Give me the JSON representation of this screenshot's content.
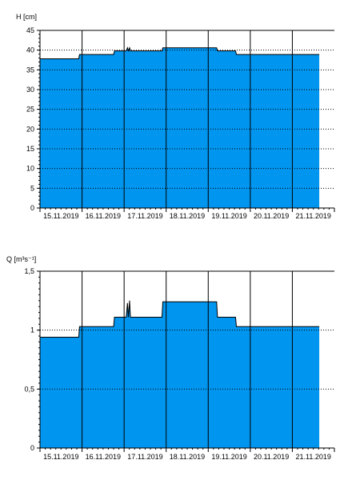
{
  "chart_data": [
    {
      "type": "area",
      "ylabel": "H [cm]",
      "ylim": [
        0,
        45
      ],
      "yticks": [
        "0",
        "5",
        "10",
        "15",
        "20",
        "25",
        "30",
        "35",
        "40",
        "45"
      ],
      "xticks": [
        "15.11.2019",
        "16.11.2019",
        "17.11.2019",
        "18.11.2019",
        "19.11.2019",
        "20.11.2019",
        "21.11.2019"
      ],
      "xlim": [
        0,
        7
      ],
      "grid": "dotted",
      "series": [
        {
          "color": "#0095ee",
          "x": [
            0.0,
            0.92,
            0.94,
            1.75,
            1.77,
            2.05,
            2.08,
            2.1,
            2.13,
            2.15,
            2.9,
            2.92,
            4.2,
            4.22,
            4.65,
            4.67,
            6.64
          ],
          "y": [
            37.8,
            37.8,
            38.9,
            38.9,
            39.8,
            39.8,
            40.6,
            39.8,
            40.6,
            39.8,
            39.8,
            40.6,
            40.6,
            39.8,
            39.8,
            38.9,
            38.9
          ]
        }
      ]
    },
    {
      "type": "area",
      "ylabel": "Q [m³s⁻¹]",
      "ylim": [
        0,
        1.5
      ],
      "yticks": [
        "0",
        "0,5",
        "1",
        "1,5"
      ],
      "xticks": [
        "15.11.2019",
        "16.11.2019",
        "17.11.2019",
        "18.11.2019",
        "19.11.2019",
        "20.11.2019",
        "21.11.2019"
      ],
      "xlim": [
        0,
        7
      ],
      "grid": "dotted",
      "series": [
        {
          "color": "#0095ee",
          "x": [
            0.0,
            0.92,
            0.94,
            1.75,
            1.77,
            2.05,
            2.08,
            2.1,
            2.13,
            2.15,
            2.9,
            2.92,
            4.2,
            4.22,
            4.65,
            4.67,
            6.64
          ],
          "y": [
            0.94,
            0.94,
            1.03,
            1.03,
            1.11,
            1.11,
            1.23,
            1.11,
            1.25,
            1.11,
            1.11,
            1.24,
            1.24,
            1.11,
            1.11,
            1.03,
            1.03
          ]
        }
      ]
    }
  ]
}
